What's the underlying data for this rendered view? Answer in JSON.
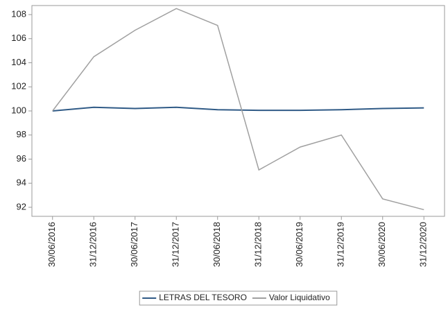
{
  "chart_data": {
    "type": "line",
    "categories": [
      "30/06/2016",
      "31/12/2016",
      "30/06/2017",
      "31/12/2017",
      "30/06/2018",
      "31/12/2018",
      "30/06/2019",
      "31/12/2019",
      "30/06/2020",
      "31/12/2020"
    ],
    "series": [
      {
        "name": "LETRAS DEL TESORO",
        "color": "#2f5a86",
        "values": [
          100,
          100.3,
          100.2,
          100.3,
          100.1,
          100.05,
          100.05,
          100.1,
          100.2,
          100.25
        ]
      },
      {
        "name": "Valor Liquidativo",
        "color": "#a0a0a0",
        "values": [
          100,
          104.5,
          106.7,
          108.5,
          107.1,
          95.1,
          97.0,
          98.0,
          92.7,
          91.8
        ]
      }
    ],
    "ylim": [
      91.25,
      108.75
    ],
    "yticks": [
      92,
      94,
      96,
      98,
      100,
      102,
      104,
      106,
      108
    ],
    "grid": false
  }
}
